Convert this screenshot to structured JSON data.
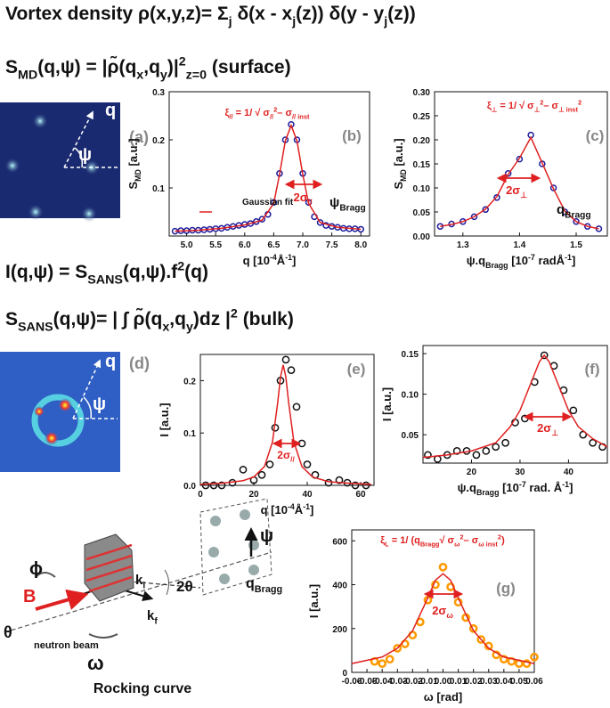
{
  "equations": [
    [
      "Vortex density  ρ(x,y,z)= Σ",
      {
        "text": "j",
        "shift": "sub"
      },
      " δ(x - x",
      {
        "text": "j",
        "shift": "sub"
      },
      "(z)) δ(y - y",
      {
        "text": "j",
        "shift": "sub"
      },
      "(z))"
    ],
    [
      "S",
      {
        "text": "MD",
        "shift": "sub"
      },
      "(q,ψ) = |ρ̃(q",
      {
        "text": "x",
        "shift": "sub"
      },
      ",q",
      {
        "text": "y",
        "shift": "sub"
      },
      ")|",
      {
        "text": "2",
        "shift": "sup"
      },
      {
        "text": "z=0",
        "shift": "sub"
      },
      "     (surface)"
    ],
    [
      "I(q,ψ) = S",
      {
        "text": "SANS",
        "shift": "sub"
      },
      "(q,ψ).f",
      {
        "text": "2",
        "shift": "sup"
      },
      "(q)"
    ],
    [
      "S",
      {
        "text": "SANS",
        "shift": "sub"
      },
      "(q,ψ)= | ∫ ρ̃(q",
      {
        "text": "x",
        "shift": "sub"
      },
      ",q",
      {
        "text": "y",
        "shift": "sub"
      },
      ")dz |",
      {
        "text": "2",
        "shift": "sup"
      },
      "    (bulk)"
    ]
  ],
  "images": [
    {
      "labels": [
        "q",
        "ψ",
        "(a)"
      ]
    },
    {
      "labels": [
        "q",
        "ψ",
        "(d)"
      ]
    }
  ],
  "diagram": {
    "labels": [
      "ϕ",
      "B",
      "θ",
      "neutron beam",
      "ω",
      [
        "k",
        {
          "text": "i",
          "shift": "sub"
        }
      ],
      [
        "k",
        {
          "text": "f",
          "shift": "sub"
        }
      ],
      "2θ",
      "ψ",
      [
        "q",
        {
          "text": "Bragg",
          "shift": "sub"
        }
      ]
    ],
    "caption": "Rocking curve"
  },
  "chart_data": [
    {
      "type": "scatter",
      "panel": "(b)",
      "xlabel": [
        "q [10",
        {
          "text": "-4",
          "shift": "sup"
        },
        "Å",
        {
          "text": "-1",
          "shift": "sup"
        },
        "]"
      ],
      "ylabel": [
        "S",
        {
          "text": "MD",
          "shift": "sub"
        },
        " [a.u.]"
      ],
      "xlim": [
        4.7,
        8.15
      ],
      "xticks": [
        {
          "value": 5,
          "label": "5.0"
        },
        5.5,
        {
          "value": 6,
          "label": "6.0"
        },
        6.5,
        {
          "value": 7,
          "label": "7.0"
        },
        7.5,
        {
          "value": 8,
          "label": "8.0"
        }
      ],
      "ylim": [
        0,
        0.3
      ],
      "yticks": [
        0.1,
        0.2,
        0.3
      ],
      "series": [
        {
          "color": "#1c1c9c",
          "marker": "circle",
          "x": [
            4.8,
            4.9,
            5.0,
            5.1,
            5.2,
            5.3,
            5.4,
            5.5,
            5.6,
            5.7,
            5.8,
            5.9,
            6.0,
            6.1,
            6.2,
            6.3,
            6.4,
            6.5,
            6.6,
            6.7,
            6.8,
            6.9,
            7.0,
            7.1,
            7.2,
            7.3,
            7.4,
            7.5,
            7.6,
            7.7,
            7.8,
            7.9,
            8.0
          ],
          "values": [
            0.01,
            0.011,
            0.011,
            0.012,
            0.012,
            0.013,
            0.014,
            0.015,
            0.016,
            0.018,
            0.02,
            0.022,
            0.024,
            0.026,
            0.03,
            0.035,
            0.045,
            0.07,
            0.13,
            0.2,
            0.232,
            0.2,
            0.13,
            0.07,
            0.04,
            0.028,
            0.022,
            0.02,
            0.018,
            0.016,
            0.015,
            0.015,
            0.014
          ]
        },
        {
          "name": "Gaussian fit",
          "color": "#e02020",
          "marker": "line",
          "x": [
            4.8,
            5.2,
            5.6,
            6.0,
            6.3,
            6.5,
            6.6,
            6.7,
            6.8,
            6.9,
            7.0,
            7.1,
            7.3,
            7.6,
            8.0
          ],
          "values": [
            0.01,
            0.012,
            0.016,
            0.023,
            0.033,
            0.068,
            0.128,
            0.198,
            0.23,
            0.198,
            0.128,
            0.068,
            0.028,
            0.018,
            0.014
          ]
        }
      ],
      "annotations": [
        [
          "ξ",
          {
            "text": "//",
            "shift": "sub"
          },
          " = 1/ √ σ",
          {
            "text": "//",
            "shift": "sub"
          },
          {
            "text": "2",
            "shift": "sup"
          },
          "– σ",
          {
            "text": "// inst",
            "shift": "sub"
          }
        ],
        [
          "2σ",
          {
            "text": "//",
            "shift": "sub"
          }
        ],
        [
          "ψ",
          {
            "text": "Bragg",
            "shift": "sub"
          }
        ]
      ]
    },
    {
      "type": "scatter",
      "panel": "(c)",
      "xlabel": [
        "ψ.q",
        {
          "text": "Bragg",
          "shift": "sub"
        },
        " [10",
        {
          "text": "-7",
          "shift": "sup"
        },
        " radÅ",
        {
          "text": "-1",
          "shift": "sup"
        },
        "]"
      ],
      "ylabel": [
        "S",
        {
          "text": "MD",
          "shift": "sub"
        },
        " [a.u.]"
      ],
      "xlim": [
        1.25,
        1.555
      ],
      "xticks": [
        1.3,
        1.4,
        1.5
      ],
      "ylim": [
        0,
        0.3
      ],
      "yticks": [
        {
          "value": 0,
          "label": "0.00"
        },
        0.05,
        {
          "value": 0.1,
          "label": "0.10"
        },
        0.15,
        {
          "value": 0.2,
          "label": "0.20"
        },
        0.25,
        {
          "value": 0.3,
          "label": "0.30"
        }
      ],
      "series": [
        {
          "color": "#1c1c9c",
          "marker": "circle",
          "x": [
            1.26,
            1.28,
            1.3,
            1.32,
            1.34,
            1.36,
            1.38,
            1.4,
            1.42,
            1.44,
            1.46,
            1.48,
            1.5,
            1.52,
            1.54
          ],
          "values": [
            0.02,
            0.025,
            0.03,
            0.04,
            0.055,
            0.08,
            0.13,
            0.16,
            0.21,
            0.15,
            0.1,
            0.05,
            0.03,
            0.02,
            0.015
          ]
        },
        {
          "color": "#e02020",
          "marker": "line",
          "x": [
            1.26,
            1.28,
            1.3,
            1.32,
            1.34,
            1.36,
            1.38,
            1.4,
            1.42,
            1.44,
            1.46,
            1.48,
            1.5,
            1.52,
            1.54
          ],
          "values": [
            0.02,
            0.024,
            0.03,
            0.04,
            0.056,
            0.082,
            0.128,
            0.162,
            0.205,
            0.152,
            0.098,
            0.052,
            0.03,
            0.02,
            0.015
          ]
        }
      ],
      "annotations": [
        [
          "ξ",
          {
            "text": "⊥",
            "shift": "sub"
          },
          " = 1/ √ σ",
          {
            "text": "⊥",
            "shift": "sub"
          },
          {
            "text": "2",
            "shift": "sup"
          },
          "– σ",
          {
            "text": "⊥ inst",
            "shift": "sub"
          },
          {
            "text": "2",
            "shift": "sup"
          }
        ],
        [
          "2σ",
          {
            "text": "⊥",
            "shift": "sub"
          }
        ],
        [
          "q",
          {
            "text": "Bragg",
            "shift": "sub"
          }
        ]
      ]
    },
    {
      "type": "scatter",
      "panel": "(e)",
      "xlabel": [
        "q [10",
        {
          "text": "-4",
          "shift": "sup"
        },
        "Å",
        {
          "text": "-1",
          "shift": "sup"
        },
        "]"
      ],
      "ylabel": "I [a.u.]",
      "xlim": [
        0,
        65
      ],
      "xticks": [
        0,
        20,
        40,
        60
      ],
      "ylim": [
        0,
        0.25
      ],
      "yticks": [
        {
          "value": 0,
          "label": "0.0"
        },
        0.1,
        0.2
      ],
      "series": [
        {
          "color": "#111111",
          "marker": "circle",
          "x": [
            2,
            5,
            8,
            12,
            16,
            20,
            23,
            26,
            28,
            30,
            32,
            34,
            36,
            38,
            40,
            43,
            48,
            52,
            55,
            58,
            62
          ],
          "values": [
            0,
            0,
            0,
            0.005,
            0.03,
            0.01,
            0.02,
            0.04,
            0.11,
            0.2,
            0.24,
            0.22,
            0.15,
            0.08,
            0.04,
            0.02,
            0.005,
            0.01,
            0.005,
            0,
            0
          ]
        },
        {
          "color": "#e02020",
          "marker": "line",
          "x": [
            0,
            8,
            16,
            20,
            24,
            27,
            29,
            30,
            31,
            32,
            33,
            35,
            38,
            42,
            48,
            56,
            64
          ],
          "values": [
            0.002,
            0.004,
            0.009,
            0.016,
            0.036,
            0.083,
            0.16,
            0.207,
            0.23,
            0.207,
            0.16,
            0.083,
            0.036,
            0.016,
            0.007,
            0.004,
            0.002
          ]
        }
      ],
      "annotations": [
        [
          "2σ",
          {
            "text": "//",
            "shift": "sub"
          }
        ]
      ]
    },
    {
      "type": "scatter",
      "panel": "(f)",
      "xlabel": [
        "ψ.q",
        {
          "text": "Bragg",
          "shift": "sub"
        },
        " [10",
        {
          "text": "-7",
          "shift": "sup"
        },
        " rad. Å",
        {
          "text": "-1",
          "shift": "sup"
        },
        "]"
      ],
      "ylabel": "I [a.u.]",
      "xlim": [
        10,
        48
      ],
      "xticks": [
        20,
        30,
        40
      ],
      "ylim": [
        0.015,
        0.16
      ],
      "yticks": [
        0.05,
        {
          "value": 0.1,
          "label": "0.10"
        },
        0.15
      ],
      "series": [
        {
          "color": "#111111",
          "marker": "circle",
          "x": [
            11,
            13,
            15,
            17,
            19,
            21,
            23,
            25,
            27,
            29,
            31,
            33,
            35,
            37,
            39,
            41,
            43,
            45,
            47
          ],
          "values": [
            0.025,
            0.02,
            0.025,
            0.03,
            0.03,
            0.025,
            0.03,
            0.035,
            0.04,
            0.065,
            0.07,
            0.115,
            0.148,
            0.135,
            0.105,
            0.08,
            0.05,
            0.04,
            0.035
          ]
        },
        {
          "color": "#e02020",
          "marker": "line",
          "x": [
            10,
            15,
            20,
            25,
            28,
            30,
            32,
            34,
            35,
            36,
            38,
            40,
            42,
            45,
            48
          ],
          "values": [
            0.022,
            0.025,
            0.03,
            0.04,
            0.06,
            0.08,
            0.11,
            0.14,
            0.148,
            0.14,
            0.11,
            0.08,
            0.06,
            0.045,
            0.035
          ]
        }
      ],
      "annotations": [
        [
          "2σ",
          {
            "text": "⊥",
            "shift": "sub"
          }
        ]
      ]
    },
    {
      "type": "scatter",
      "panel": "(g)",
      "xlabel": "ω [rad]",
      "ylabel": "I  [a.u.]",
      "xlim": [
        -0.06,
        0.06
      ],
      "xticks": [
        -0.06,
        -0.05,
        -0.04,
        -0.03,
        -0.02,
        -0.01,
        {
          "value": 0,
          "label": "0.00"
        },
        0.01,
        0.02,
        0.03,
        0.04,
        0.05,
        0.06
      ],
      "ylim": [
        0,
        650
      ],
      "yticks": [
        0,
        200,
        400,
        600
      ],
      "series": [
        {
          "color": "#ff9900",
          "marker": "circle",
          "x": [
            -0.045,
            -0.04,
            -0.035,
            -0.03,
            -0.025,
            -0.02,
            -0.015,
            -0.01,
            -0.005,
            0,
            0.005,
            0.01,
            0.015,
            0.02,
            0.025,
            0.03,
            0.035,
            0.04,
            0.045,
            0.05,
            0.055,
            0.06
          ],
          "values": [
            50,
            40,
            60,
            110,
            130,
            170,
            230,
            330,
            400,
            480,
            390,
            320,
            250,
            200,
            150,
            120,
            80,
            60,
            50,
            40,
            40,
            70
          ]
        },
        {
          "color": "#e02020",
          "marker": "line",
          "x": [
            -0.06,
            -0.04,
            -0.03,
            -0.02,
            -0.01,
            -0.005,
            0,
            0.005,
            0.01,
            0.02,
            0.03,
            0.04,
            0.06
          ],
          "values": [
            40,
            70,
            110,
            190,
            340,
            420,
            450,
            420,
            340,
            190,
            110,
            70,
            40
          ]
        }
      ],
      "annotations": [
        [
          "ξ",
          {
            "text": "L",
            "shift": "sub"
          },
          " = 1/ (q",
          {
            "text": "Bragg",
            "shift": "sub"
          },
          "√ σ",
          {
            "text": "ω",
            "shift": "sub"
          },
          {
            "text": "2",
            "shift": "sup"
          },
          "– σ",
          {
            "text": "ω inst",
            "shift": "sub"
          },
          {
            "text": "2",
            "shift": "sup"
          },
          ")"
        ],
        [
          "2σ",
          {
            "text": "ω",
            "shift": "sub"
          }
        ]
      ]
    }
  ]
}
